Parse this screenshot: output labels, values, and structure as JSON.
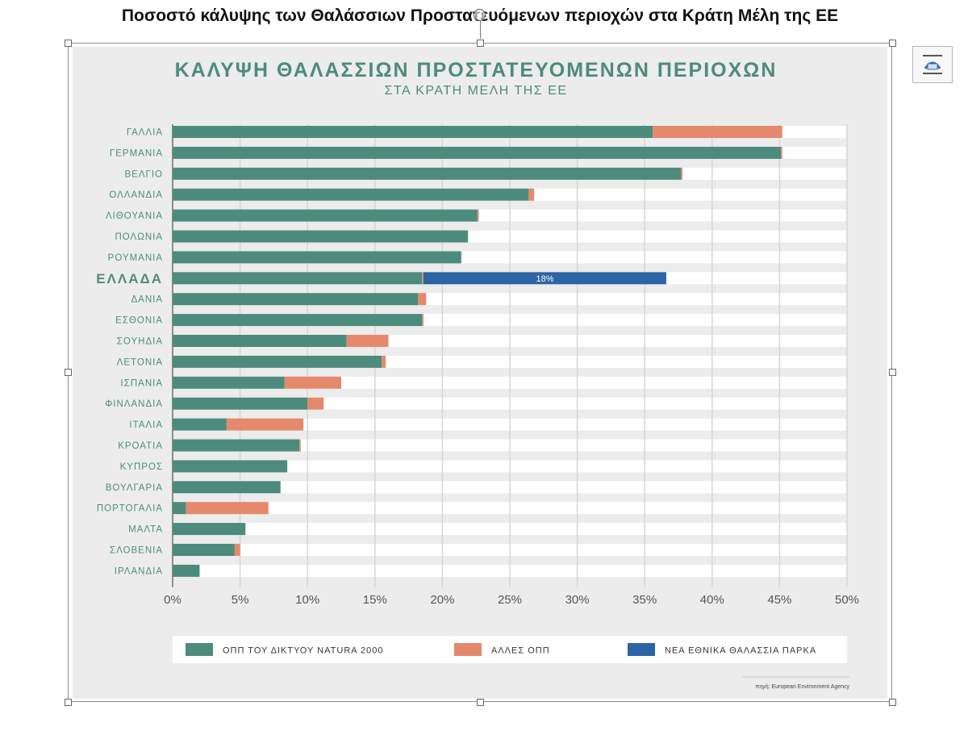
{
  "document": {
    "title": "Ποσοστό κάλυψης των Θαλάσσιων Προστατευόμενων περιοχών στα Κράτη Μέλη της ΕΕ"
  },
  "colors": {
    "natura": "#4d8b7c",
    "other": "#e5896c",
    "parks": "#2c64a5",
    "label": "#4d8b7c",
    "title": "#4d8b7c",
    "stripe": "#ffffff",
    "background": "#ececec"
  },
  "chart_data": {
    "type": "bar",
    "orientation": "horizontal",
    "stacked": true,
    "title": "ΚΑΛΥΨΗ ΘΑΛΑΣΣΙΩΝ ΠΡΟΣΤΑΤΕΥΟΜΕΝΩΝ ΠΕΡΙΟΧΩΝ",
    "subtitle": "ΣΤΑ ΚΡΑΤΗ ΜΕΛΗ ΤΗΣ ΕΕ",
    "categories": [
      "ΓΑΛΛΙΑ",
      "ΓΕΡΜΑΝΙΑ",
      "ΒΕΛΓΙΟ",
      "ΟΛΛΑΝΔΙΑ",
      "ΛΙΘΟΥΑΝΙΑ",
      "ΠΟΛΩΝΙΑ",
      "ΡΟΥΜΑΝΙΑ",
      "ΕΛΛΑΔΑ",
      "ΔΑΝΙΑ",
      "ΕΣΘΟΝΙΑ",
      "ΣΟΥΗΔΙΑ",
      "ΛΕΤΟΝΙΑ",
      "ΙΣΠΑΝΙΑ",
      "ΦΙΝΛΑΝΔΙΑ",
      "ΙΤΑΛΙΑ",
      "ΚΡΟΑΤΙΑ",
      "ΚΥΠΡΟΣ",
      "ΒΟΥΛΓΑΡΙΑ",
      "ΠΟΡΤΟΓΑΛΙΑ",
      "ΜΑΛΤΑ",
      "ΣΛΟΒΕΝΙΑ",
      "ΙΡΛΑΝΔΙΑ"
    ],
    "highlight_category": "ΕΛΛΑΔΑ",
    "series": [
      {
        "name": "ΟΠΠ ΤΟΥ ΔΙΚΤΥΟΥ NATURA 2000",
        "color_key": "natura",
        "values": [
          35.6,
          45.1,
          37.7,
          26.4,
          22.6,
          21.9,
          21.4,
          18.5,
          18.2,
          18.5,
          12.9,
          15.5,
          8.3,
          10.0,
          4.0,
          9.4,
          8.5,
          8.0,
          1.0,
          5.4,
          4.6,
          2.0
        ]
      },
      {
        "name": "ΑΛΛΕΣ ΟΠΠ",
        "color_key": "other",
        "values": [
          9.6,
          0.1,
          0.1,
          0.4,
          0.1,
          0,
          0,
          0.1,
          0.6,
          0.1,
          3.1,
          0.3,
          4.2,
          1.2,
          5.7,
          0.1,
          0,
          0,
          6.1,
          0,
          0.4,
          0
        ]
      },
      {
        "name": "ΝΕΑ ΕΘΝΙΚΑ ΘΑΛΑΣΣΙΑ ΠΑΡΚΑ",
        "color_key": "parks",
        "values": [
          0,
          0,
          0,
          0,
          0,
          0,
          0,
          18,
          0,
          0,
          0,
          0,
          0,
          0,
          0,
          0,
          0,
          0,
          0,
          0,
          0,
          0
        ]
      }
    ],
    "data_labels": [
      {
        "category": "ΕΛΛΑΔΑ",
        "series": "ΝΕΑ ΕΘΝΙΚΑ ΘΑΛΑΣΣΙΑ ΠΑΡΚΑ",
        "text": "18%"
      }
    ],
    "xlim": [
      0,
      50
    ],
    "x_ticks": [
      0,
      5,
      10,
      15,
      20,
      25,
      30,
      35,
      40,
      45,
      50
    ],
    "x_tick_labels": [
      "0%",
      "5%",
      "10%",
      "15%",
      "20%",
      "25%",
      "30%",
      "35%",
      "40%",
      "45%",
      "50%"
    ],
    "xlabel": "",
    "ylabel": "",
    "grid": true,
    "legend_position": "bottom",
    "source_note": "πηγή: European Environment Agency"
  }
}
